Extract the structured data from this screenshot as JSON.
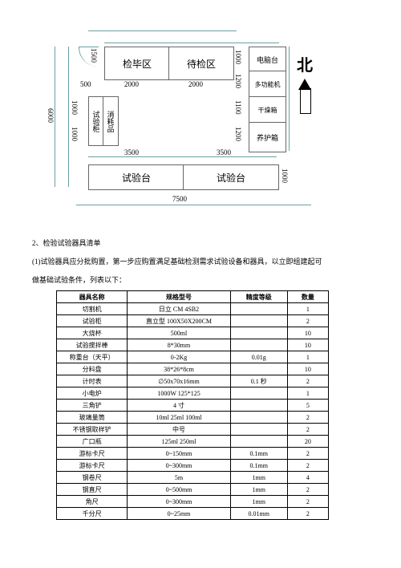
{
  "floor_plan": {
    "rooms": {
      "inspected": "检毕区",
      "to_inspect": "待检区",
      "computer": "电脑台",
      "multi_machine": "多功能机",
      "dry_box": "干燥箱",
      "curing_box": "养护箱",
      "bench_left": "试验台",
      "bench_right": "试验台",
      "cabinet_left": "试验柜",
      "cabinet_right": "消耗品"
    },
    "dimensions": {
      "d1500": "1500",
      "d500": "500",
      "d2000a": "2000",
      "d2000b": "2000",
      "d1000a": "1000",
      "d1000b": "1000",
      "d1000c": "1000",
      "d1000d": "1000",
      "d1200a": "1200",
      "d1200b": "1200",
      "d1100": "1100",
      "d3500a": "3500",
      "d3500b": "3500",
      "d6000": "6000",
      "d7500": "7500",
      "d1000e": "1000"
    },
    "north": "北"
  },
  "text": {
    "line1": "2、检验试验器具清单",
    "line2": "(1)试验器具应分批购置，第一步应购置满足基础检测需求试验设备和器具，以立即组建起可",
    "line3": "做基础试验条件，列表以下："
  },
  "table": {
    "headers": {
      "name": "器具名称",
      "model": "规格型号",
      "precision": "精度等级",
      "qty": "数量"
    },
    "rows": [
      {
        "name": "切割机",
        "model": "日立 CM 4SB2",
        "precision": "",
        "qty": "1"
      },
      {
        "name": "试验柜",
        "model": "直立型 100X50X200CM",
        "precision": "",
        "qty": "2"
      },
      {
        "name": "大烧杯",
        "model": "500ml",
        "precision": "",
        "qty": "10"
      },
      {
        "name": "试验搅拌棒",
        "model": "8*30mm",
        "precision": "",
        "qty": "10"
      },
      {
        "name": "称重台（天平）",
        "model": "0-2Kg",
        "precision": "0.01g",
        "qty": "1"
      },
      {
        "name": "分料盘",
        "model": "38*26*8cm",
        "precision": "",
        "qty": "10"
      },
      {
        "name": "计时表",
        "model": "∅50x70x16mm",
        "precision": "0.1 秒",
        "qty": "2"
      },
      {
        "name": "小电炉",
        "model": "1000W 125*125",
        "precision": "",
        "qty": "1"
      },
      {
        "name": "三角铲",
        "model": "4 寸",
        "precision": "",
        "qty": "5"
      },
      {
        "name": "玻璃量筒",
        "model": "10ml 25ml 100ml",
        "precision": "",
        "qty": "2"
      },
      {
        "name": "不锈钢取样铲",
        "model": "中号",
        "precision": "",
        "qty": "2"
      },
      {
        "name": "广口瓶",
        "model": "125ml 250ml",
        "precision": "",
        "qty": "20"
      },
      {
        "name": "游标卡尺",
        "model": "0~150mm",
        "precision": "0.1mm",
        "qty": "2"
      },
      {
        "name": "游标卡尺",
        "model": "0~300mm",
        "precision": "0.1mm",
        "qty": "2"
      },
      {
        "name": "钢卷尺",
        "model": "5m",
        "precision": "1mm",
        "qty": "4"
      },
      {
        "name": "钢直尺",
        "model": "0~500mm",
        "precision": "1mm",
        "qty": "2"
      },
      {
        "name": "角尺",
        "model": "0~300mm",
        "precision": "1mm",
        "qty": "2"
      },
      {
        "name": "千分尺",
        "model": "0~25mm",
        "precision": "0.01mm",
        "qty": "2"
      }
    ],
    "col_widths": {
      "name": 90,
      "model": 130,
      "precision": 70,
      "qty": 50
    }
  }
}
